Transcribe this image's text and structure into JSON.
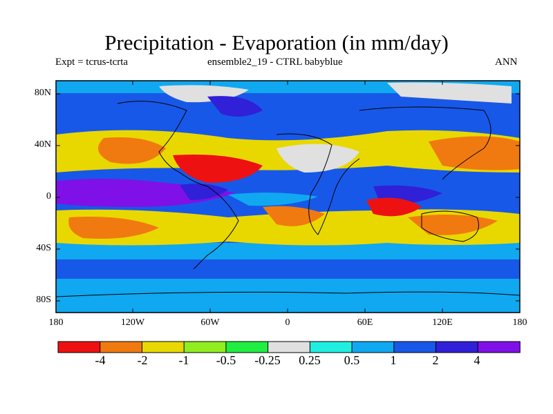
{
  "title": "Precipitation - Evaporation (in mm/day)",
  "subtitle_left": "Expt = tcrus-tcrta",
  "subtitle_center": "ensemble2_19 - CTRL babyblue",
  "subtitle_right": "ANN",
  "axes": {
    "y_ticks": [
      "80N",
      "40N",
      "0",
      "40S",
      "80S"
    ],
    "x_ticks": [
      "180",
      "120W",
      "60W",
      "0",
      "60E",
      "120E",
      "180"
    ]
  },
  "colorbar": {
    "colors": [
      "#ee1111",
      "#f07a10",
      "#e8d800",
      "#90ee20",
      "#20ee40",
      "#e0e0e0",
      "#20eee0",
      "#10a8f0",
      "#1858e8",
      "#3020d8",
      "#8010e8"
    ],
    "labels": [
      "-4",
      "-2",
      "-1",
      "-0.5",
      "-0.25",
      "0.25",
      "0.5",
      "1",
      "2",
      "4"
    ]
  }
}
